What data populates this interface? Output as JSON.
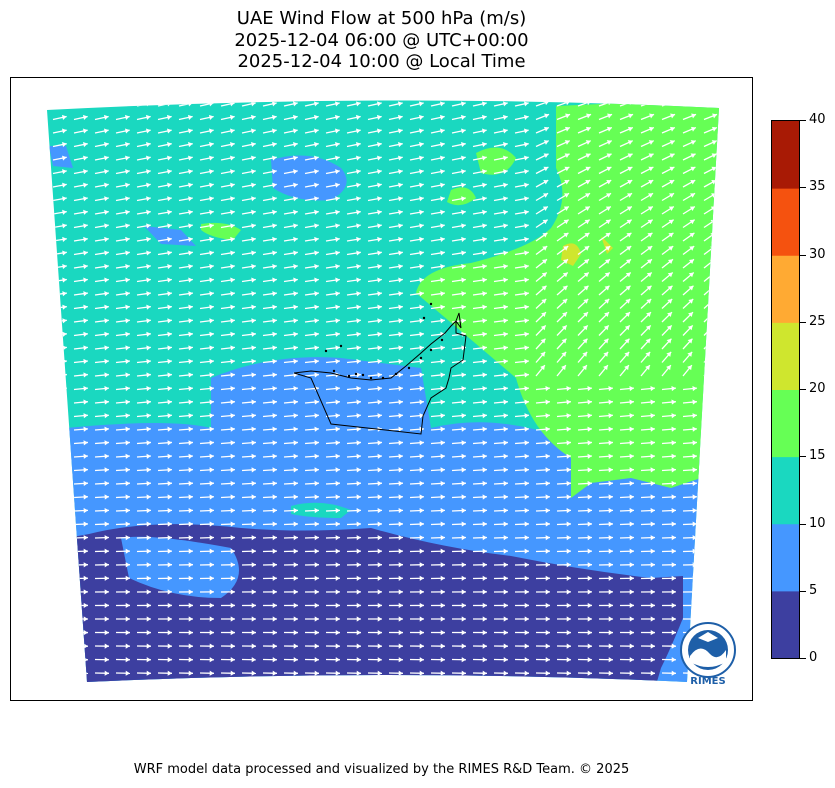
{
  "title": {
    "line1": "UAE Wind Flow at 500 hPa (m/s)",
    "line2": "2025-12-04 06:00 @ UTC+00:00",
    "line3": "2025-12-04 10:00 @ Local Time"
  },
  "colorbar": {
    "levels": [
      "0",
      "5",
      "10",
      "15",
      "20",
      "25",
      "30",
      "35",
      "40"
    ],
    "colors": [
      "#3d3fa0",
      "#4597ff",
      "#1ad8c0",
      "#66ff55",
      "#cfe62e",
      "#ffaa33",
      "#f5520f",
      "#a81a05"
    ]
  },
  "map": {
    "field": "wind speed (m/s) with flow-direction arrows",
    "region": "UAE and surroundings",
    "arrow_color": "#ffffff",
    "boundary_color": "#000000"
  },
  "logo": {
    "text": "RIMES"
  },
  "footer": "WRF model data processed and visualized by the RIMES R&D Team. © 2025"
}
